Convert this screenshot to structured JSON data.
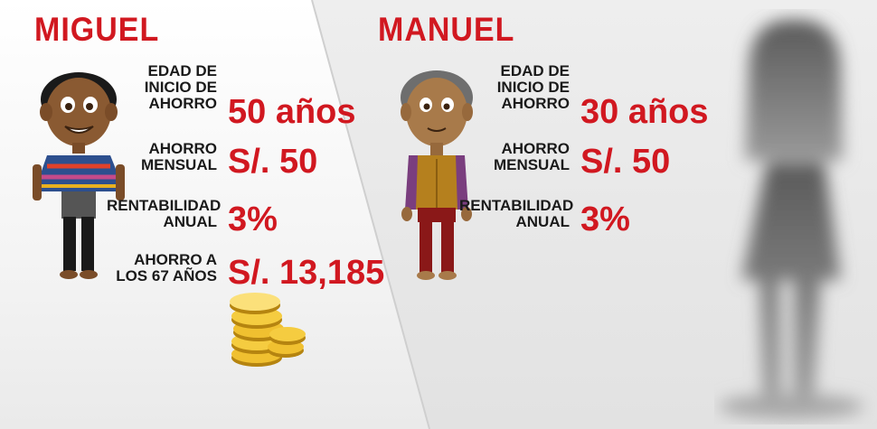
{
  "miguel": {
    "name": "MIGUEL",
    "rows": [
      {
        "label": "EDAD DE\nINICIO DE\nAHORRO",
        "value": "50 años"
      },
      {
        "label": "AHORRO\nMENSUAL",
        "value": "S/. 50"
      },
      {
        "label": "RENTABILIDAD\nANUAL",
        "value": "3%"
      },
      {
        "label": "AHORRO A\nLOS 67 AÑOS",
        "value": "S/. 13,185"
      }
    ]
  },
  "manuel": {
    "name": "MANUEL",
    "rows": [
      {
        "label": "EDAD DE\nINICIO DE\nAHORRO",
        "value": "30 años"
      },
      {
        "label": "AHORRO\nMENSUAL",
        "value": "S/. 50"
      },
      {
        "label": "RENTABILIDAD\nANUAL",
        "value": "3%"
      }
    ]
  },
  "colors": {
    "accent": "#d11820",
    "text": "#1a1a1a"
  }
}
